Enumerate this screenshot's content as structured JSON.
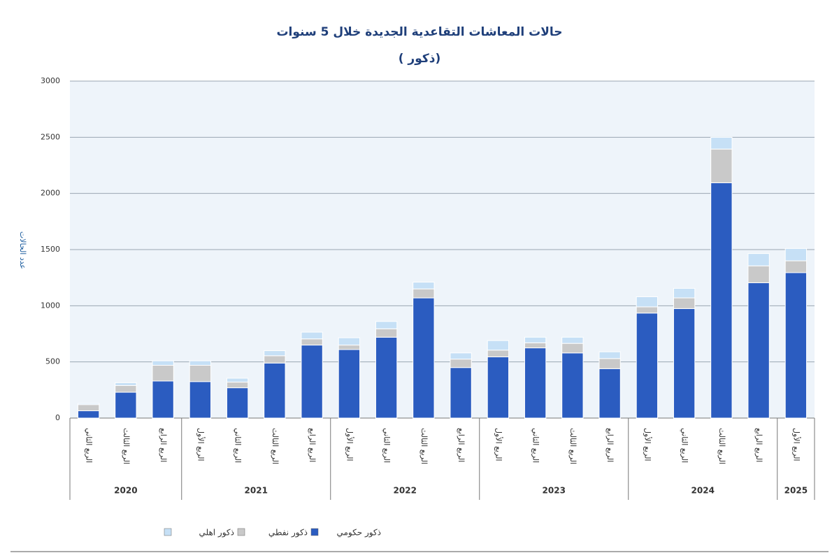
{
  "chart_data": {
    "type": "stacked_bar",
    "title": "حالات المعاشات التقاعدية الجديدة خلال 5 سنوات",
    "subtitle": "( ذكور)",
    "y_label": "عدد الحالات",
    "groups": [
      {
        "label": "2020",
        "categories": [
          "الربع الثاني",
          "الربع الثالث",
          "الربع الرابع"
        ]
      },
      {
        "label": "2021",
        "categories": [
          "الربع الأول",
          "الربع الثاني",
          "الربع الثالث",
          "الربع الرابع"
        ]
      },
      {
        "label": "2022",
        "categories": [
          "الربع الأول",
          "الربع الثاني",
          "الربع الثالث",
          "الربع الرابع"
        ]
      },
      {
        "label": "2023",
        "categories": [
          "الربع الأول",
          "الربع الثاني",
          "الربع الثالث",
          "الربع الرابع"
        ]
      },
      {
        "label": "2024",
        "categories": [
          "الربع الأول",
          "الربع الثاني",
          "الربع الثالث",
          "الربع الرابع"
        ]
      },
      {
        "label": "2025",
        "categories": [
          "الربع الأول"
        ]
      }
    ],
    "series": [
      {
        "name": "ذكور حكومي",
        "color": "#2b5cc0",
        "values": [
          65,
          230,
          330,
          325,
          270,
          490,
          650,
          610,
          720,
          1070,
          450,
          545,
          625,
          580,
          440,
          935,
          975,
          2095,
          1205,
          1295
        ]
      },
      {
        "name": "ذكور نفطي",
        "color": "#c9c9c9",
        "values": [
          55,
          60,
          140,
          145,
          50,
          65,
          55,
          40,
          75,
          80,
          75,
          60,
          45,
          85,
          90,
          55,
          95,
          300,
          150,
          105
        ]
      },
      {
        "name": "ذكور اهلي",
        "color": "#c6e0f6",
        "values": [
          10,
          25,
          40,
          40,
          35,
          45,
          60,
          65,
          65,
          60,
          55,
          85,
          50,
          55,
          60,
          90,
          85,
          105,
          110,
          110
        ]
      }
    ],
    "ylim": [
      0,
      3000
    ],
    "yticks": [
      0,
      500,
      1000,
      1500,
      2000,
      2500,
      3000
    ],
    "grid": true
  }
}
